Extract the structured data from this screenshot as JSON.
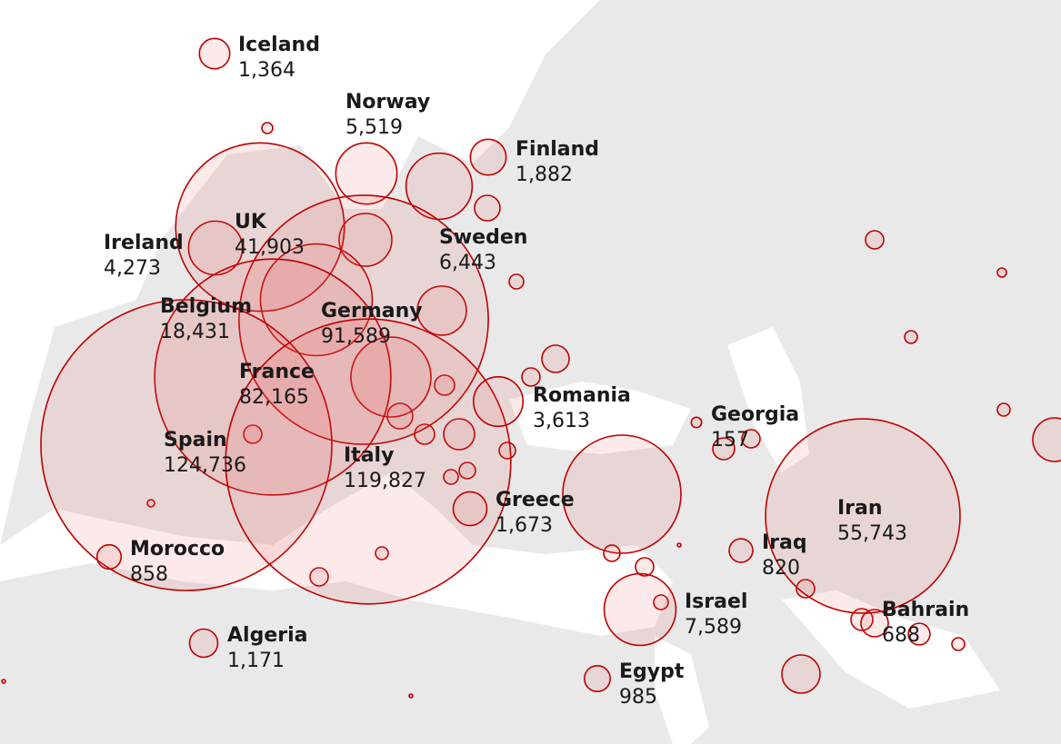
{
  "chart_data": {
    "type": "bubble_map",
    "categories": [
      "Iceland",
      "Norway",
      "Finland",
      "Sweden",
      "Ireland",
      "UK",
      "Belgium",
      "Germany",
      "France",
      "Spain",
      "Italy",
      "Romania",
      "Greece",
      "Morocco",
      "Algeria",
      "Georgia",
      "Iran",
      "Iraq",
      "Bahrain",
      "Israel",
      "Egypt"
    ],
    "values": [
      1364,
      5519,
      1882,
      6443,
      4273,
      41903,
      18431,
      91589,
      82165,
      124736,
      119827,
      3613,
      1673,
      858,
      1171,
      157,
      55743,
      820,
      688,
      7589,
      985
    ],
    "value_labels": [
      "1,364",
      "5,519",
      "1,882",
      "6,443",
      "4,273",
      "41,903",
      "18,431",
      "91,589",
      "82,165",
      "124,736",
      "119,827",
      "3,613",
      "1,673",
      "858",
      "1,171",
      "157",
      "55,743",
      "820",
      "688",
      "7,589",
      "985"
    ],
    "color": "#c00000"
  }
}
